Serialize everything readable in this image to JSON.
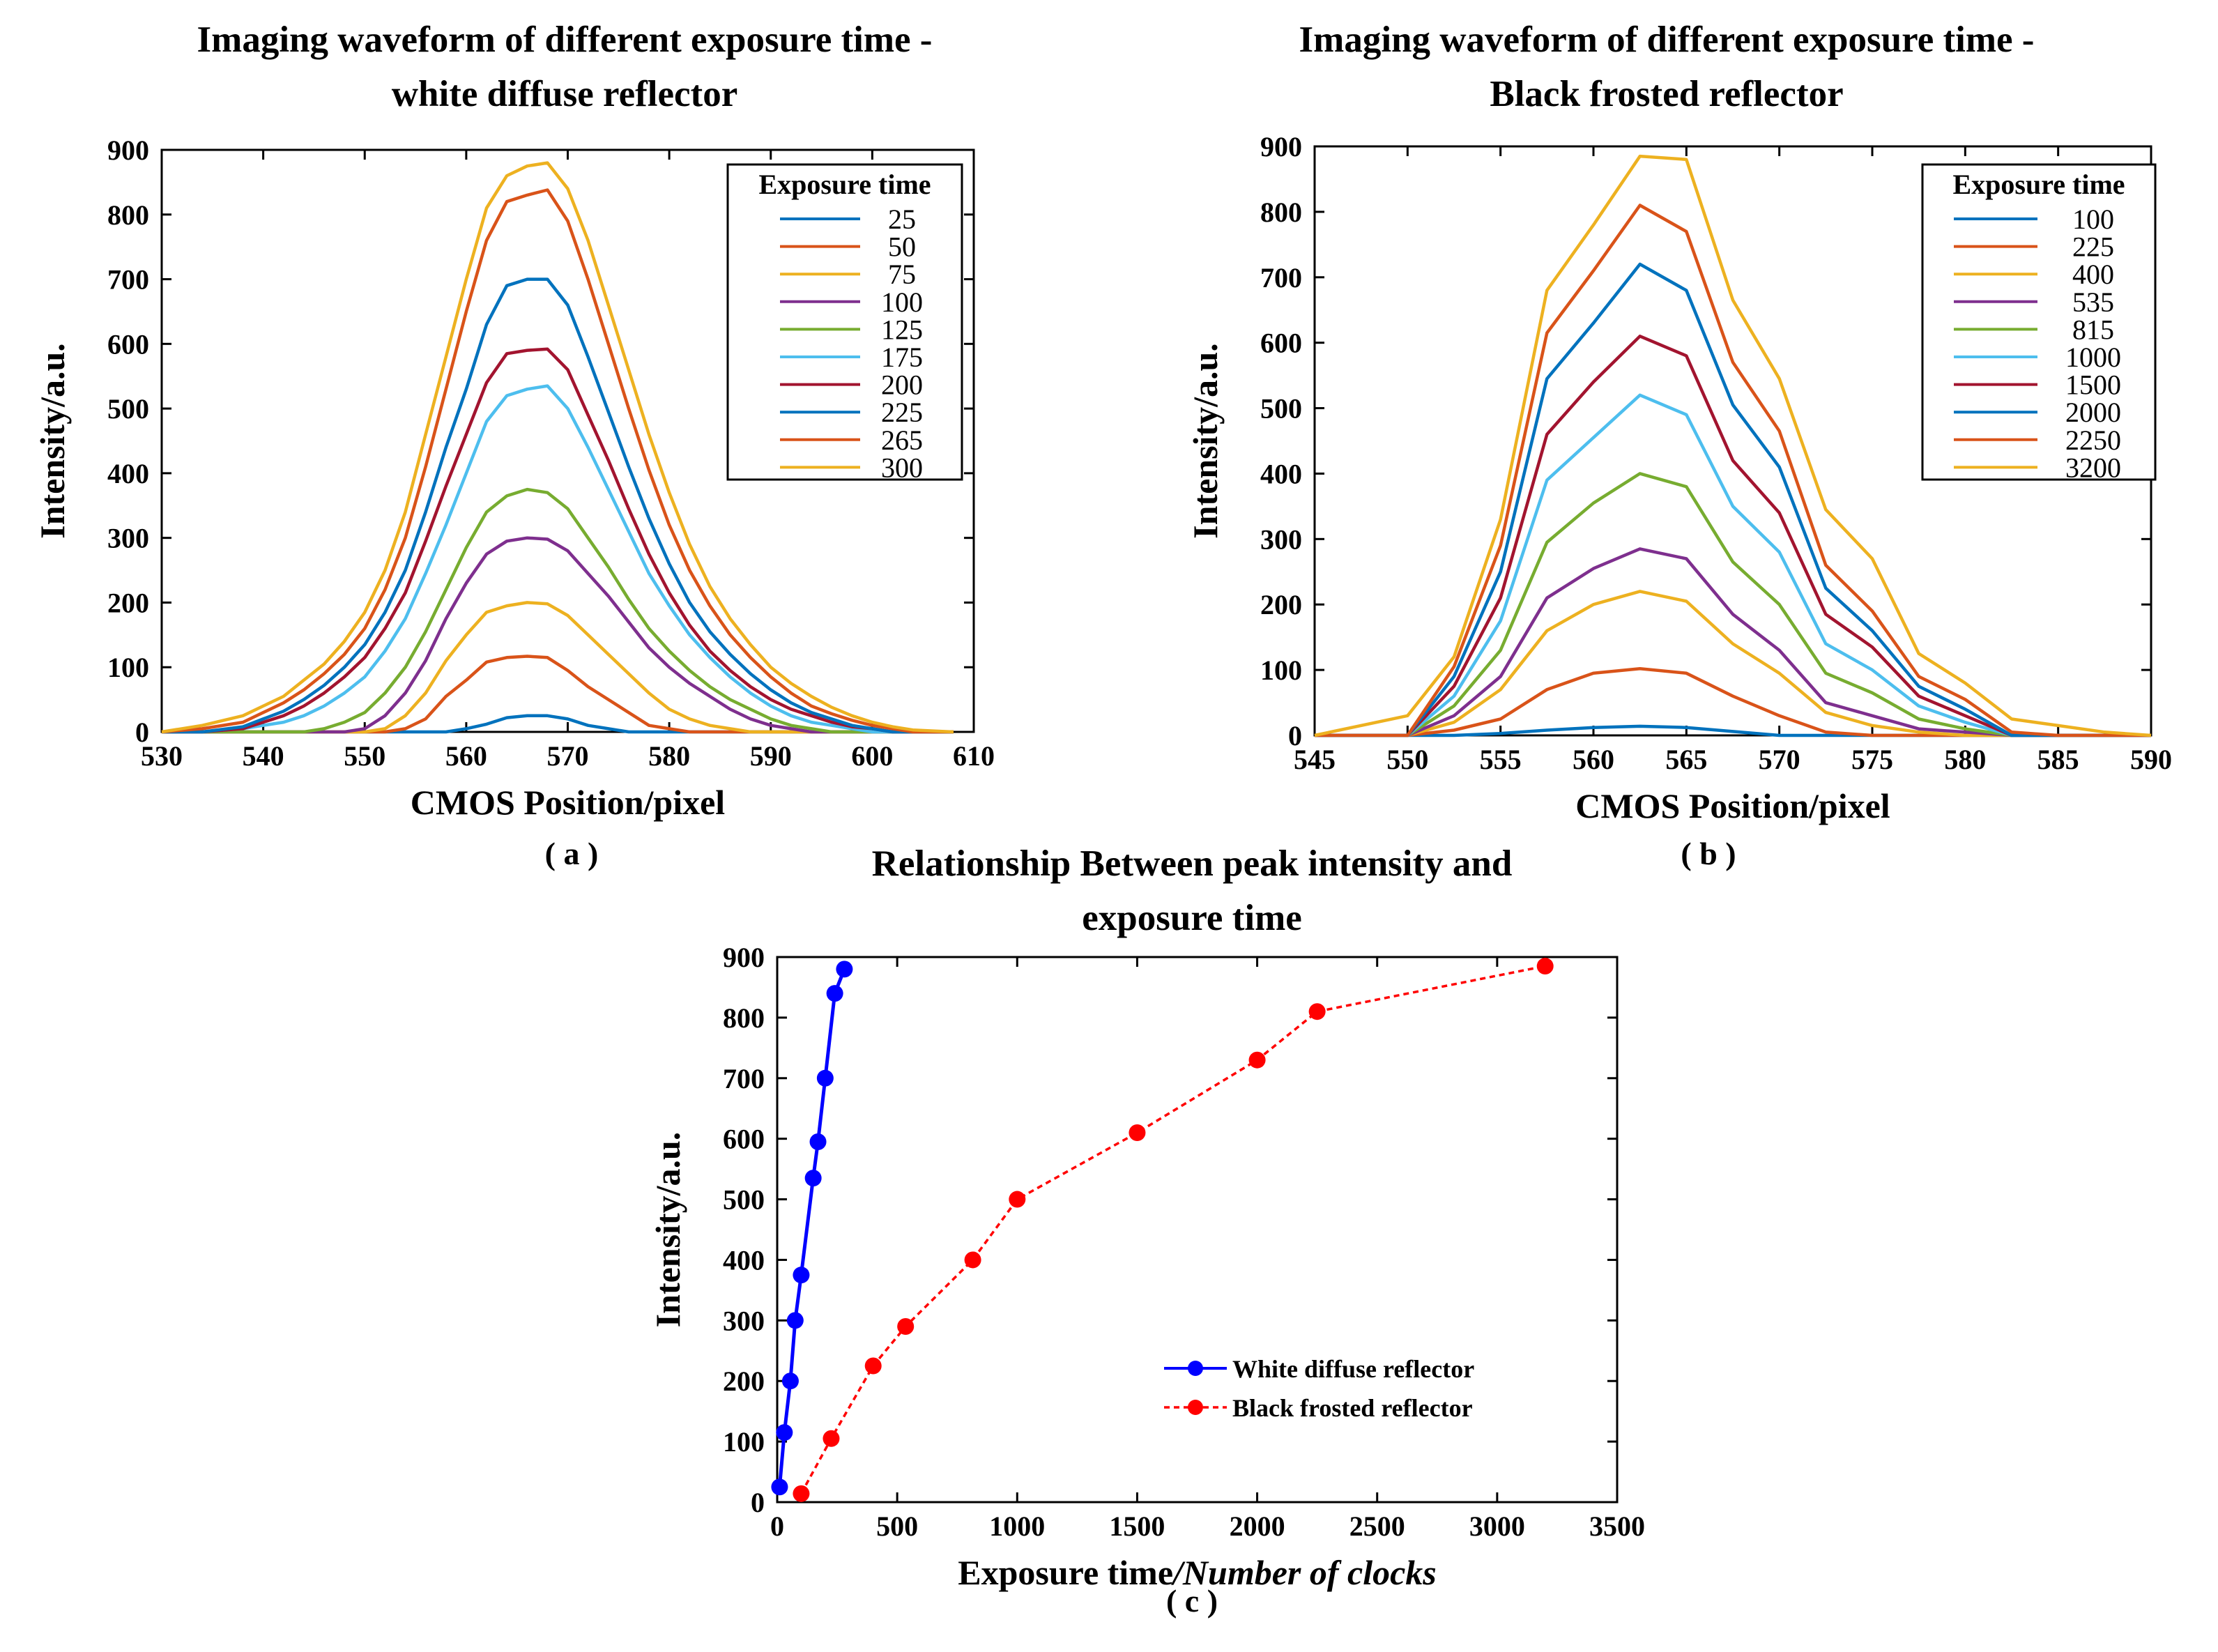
{
  "chart_data": [
    {
      "id": "a",
      "type": "line",
      "title_line1": "Imaging waveform of different exposure time -",
      "title_line2": "white diffuse reflector",
      "xlabel": "CMOS Position/pixel",
      "ylabel": "Intensity/a.u.",
      "caption": "( a )",
      "xlim": [
        530,
        610
      ],
      "ylim": [
        0,
        900
      ],
      "xticks": [
        530,
        540,
        550,
        560,
        570,
        580,
        590,
        600,
        610
      ],
      "yticks": [
        0,
        100,
        200,
        300,
        400,
        500,
        600,
        700,
        800,
        900
      ],
      "legend_title": "Exposure time",
      "x": [
        530,
        534,
        538,
        540,
        542,
        544,
        546,
        548,
        550,
        552,
        554,
        556,
        558,
        560,
        562,
        564,
        566,
        568,
        570,
        572,
        574,
        576,
        578,
        580,
        582,
        584,
        586,
        588,
        590,
        592,
        594,
        596,
        598,
        600,
        602,
        604,
        608
      ],
      "series": [
        {
          "name": "25",
          "color": "#0072BD",
          "values": [
            0,
            0,
            0,
            0,
            0,
            0,
            0,
            0,
            0,
            0,
            0,
            0,
            0,
            5,
            12,
            22,
            25,
            25,
            20,
            10,
            5,
            0,
            0,
            0,
            0,
            0,
            0,
            0,
            0,
            0,
            0,
            0,
            0,
            0,
            0,
            0,
            0
          ]
        },
        {
          "name": "50",
          "color": "#D95319",
          "values": [
            0,
            0,
            0,
            0,
            0,
            0,
            0,
            0,
            0,
            0,
            5,
            20,
            55,
            80,
            108,
            115,
            117,
            115,
            95,
            70,
            50,
            30,
            10,
            5,
            0,
            0,
            0,
            0,
            0,
            0,
            0,
            0,
            0,
            0,
            0,
            0,
            0
          ]
        },
        {
          "name": "75",
          "color": "#EDB120",
          "values": [
            0,
            0,
            0,
            0,
            0,
            0,
            0,
            0,
            0,
            5,
            25,
            60,
            110,
            150,
            185,
            195,
            200,
            198,
            180,
            150,
            120,
            90,
            60,
            35,
            20,
            10,
            5,
            0,
            0,
            0,
            0,
            0,
            0,
            0,
            0,
            0,
            0
          ]
        },
        {
          "name": "100",
          "color": "#7E2F8E",
          "values": [
            0,
            0,
            0,
            0,
            0,
            0,
            0,
            0,
            5,
            25,
            60,
            110,
            175,
            230,
            275,
            295,
            300,
            298,
            280,
            245,
            210,
            170,
            130,
            100,
            75,
            55,
            35,
            20,
            10,
            5,
            0,
            0,
            0,
            0,
            0,
            0,
            0
          ]
        },
        {
          "name": "125",
          "color": "#77AC30",
          "values": [
            0,
            0,
            0,
            0,
            0,
            0,
            5,
            15,
            30,
            60,
            100,
            155,
            220,
            285,
            340,
            365,
            375,
            370,
            345,
            300,
            255,
            205,
            160,
            125,
            95,
            70,
            50,
            35,
            20,
            10,
            5,
            0,
            0,
            0,
            0,
            0,
            0
          ]
        },
        {
          "name": "175",
          "color": "#4DBEEE",
          "values": [
            0,
            0,
            5,
            10,
            15,
            25,
            40,
            60,
            85,
            125,
            175,
            245,
            320,
            400,
            480,
            520,
            530,
            535,
            500,
            440,
            375,
            310,
            245,
            195,
            150,
            115,
            85,
            60,
            40,
            25,
            15,
            10,
            5,
            0,
            0,
            0,
            0
          ]
        },
        {
          "name": "200",
          "color": "#A2142F",
          "values": [
            0,
            0,
            5,
            15,
            25,
            40,
            60,
            85,
            115,
            160,
            215,
            295,
            380,
            460,
            540,
            585,
            590,
            592,
            560,
            490,
            420,
            345,
            275,
            215,
            165,
            125,
            95,
            70,
            50,
            35,
            25,
            15,
            8,
            5,
            0,
            0,
            0
          ]
        },
        {
          "name": "225",
          "color": "#0072BD",
          "values": [
            0,
            0,
            8,
            20,
            32,
            50,
            72,
            100,
            135,
            185,
            250,
            340,
            440,
            530,
            630,
            690,
            700,
            700,
            660,
            580,
            495,
            410,
            330,
            260,
            200,
            155,
            120,
            90,
            65,
            45,
            30,
            20,
            10,
            5,
            0,
            0,
            0
          ]
        },
        {
          "name": "265",
          "color": "#D95319",
          "values": [
            0,
            5,
            15,
            30,
            45,
            65,
            90,
            120,
            160,
            220,
            300,
            410,
            530,
            650,
            760,
            820,
            830,
            838,
            790,
            700,
            600,
            500,
            405,
            320,
            250,
            195,
            150,
            115,
            85,
            60,
            40,
            28,
            18,
            10,
            5,
            0,
            0
          ]
        },
        {
          "name": "300",
          "color": "#EDB120",
          "values": [
            0,
            10,
            25,
            40,
            55,
            80,
            105,
            140,
            185,
            250,
            340,
            460,
            580,
            700,
            810,
            860,
            875,
            880,
            840,
            760,
            660,
            560,
            460,
            370,
            290,
            225,
            175,
            135,
            100,
            75,
            55,
            38,
            25,
            15,
            8,
            3,
            0
          ]
        }
      ]
    },
    {
      "id": "b",
      "type": "line",
      "title_line1": "Imaging waveform of different exposure time -",
      "title_line2": "Black frosted reflector",
      "xlabel": "CMOS Position/pixel",
      "ylabel": "Intensity/a.u.",
      "caption": "( b )",
      "xlim": [
        545,
        590
      ],
      "ylim": [
        0,
        900
      ],
      "xticks": [
        545,
        550,
        555,
        560,
        565,
        570,
        575,
        580,
        585,
        590
      ],
      "yticks": [
        0,
        100,
        200,
        300,
        400,
        500,
        600,
        700,
        800,
        900
      ],
      "legend_title": "Exposure time",
      "x": [
        545,
        550,
        552.5,
        555,
        557.5,
        560,
        562.5,
        565,
        567.5,
        570,
        572.5,
        575,
        577.5,
        580,
        582.5,
        585,
        587.5,
        590
      ],
      "series": [
        {
          "name": "100",
          "color": "#0072BD",
          "values": [
            0,
            0,
            0,
            3,
            8,
            12,
            14,
            12,
            6,
            0,
            0,
            0,
            0,
            0,
            0,
            0,
            0,
            0
          ]
        },
        {
          "name": "225",
          "color": "#D95319",
          "values": [
            0,
            0,
            8,
            25,
            70,
            95,
            102,
            95,
            60,
            30,
            5,
            0,
            0,
            0,
            0,
            0,
            0,
            0
          ]
        },
        {
          "name": "400",
          "color": "#EDB120",
          "values": [
            0,
            0,
            20,
            70,
            160,
            200,
            220,
            205,
            140,
            95,
            35,
            15,
            5,
            0,
            0,
            0,
            0,
            0
          ]
        },
        {
          "name": "535",
          "color": "#7E2F8E",
          "values": [
            0,
            0,
            30,
            90,
            210,
            255,
            285,
            270,
            185,
            130,
            50,
            30,
            10,
            5,
            0,
            0,
            0,
            0
          ]
        },
        {
          "name": "815",
          "color": "#77AC30",
          "values": [
            0,
            0,
            45,
            130,
            295,
            355,
            400,
            380,
            265,
            200,
            95,
            65,
            25,
            10,
            0,
            0,
            0,
            0
          ]
        },
        {
          "name": "1000",
          "color": "#4DBEEE",
          "values": [
            0,
            0,
            60,
            175,
            390,
            455,
            520,
            490,
            350,
            280,
            140,
            100,
            45,
            20,
            0,
            0,
            0,
            0
          ]
        },
        {
          "name": "1500",
          "color": "#A2142F",
          "values": [
            0,
            0,
            75,
            210,
            460,
            540,
            610,
            580,
            420,
            340,
            185,
            135,
            60,
            30,
            0,
            0,
            0,
            0
          ]
        },
        {
          "name": "2000",
          "color": "#0072BD",
          "values": [
            0,
            0,
            90,
            250,
            545,
            630,
            720,
            680,
            505,
            410,
            225,
            160,
            75,
            40,
            0,
            0,
            0,
            0
          ]
        },
        {
          "name": "2250",
          "color": "#D95319",
          "values": [
            0,
            0,
            105,
            290,
            615,
            710,
            810,
            770,
            570,
            465,
            260,
            190,
            90,
            55,
            5,
            0,
            0,
            0
          ]
        },
        {
          "name": "3200",
          "color": "#EDB120",
          "values": [
            0,
            30,
            120,
            330,
            680,
            780,
            885,
            880,
            665,
            545,
            345,
            270,
            125,
            80,
            25,
            15,
            5,
            0
          ]
        }
      ]
    },
    {
      "id": "c",
      "type": "scatter",
      "title_line1": "Relationship Between peak intensity and",
      "title_line2": "exposure time",
      "xlabel_plain": "Exposure time",
      "xlabel_italic": "/Number of clocks",
      "ylabel": "Intensity/a.u.",
      "caption": "( c )",
      "xlim": [
        0,
        3500
      ],
      "ylim": [
        0,
        900
      ],
      "xticks": [
        0,
        500,
        1000,
        1500,
        2000,
        2500,
        3000,
        3500
      ],
      "yticks": [
        0,
        100,
        200,
        300,
        400,
        500,
        600,
        700,
        800,
        900
      ],
      "series": [
        {
          "name": "White diffuse reflector",
          "color": "#0000FF",
          "dash": "solid",
          "x": [
            10,
            30,
            55,
            75,
            100,
            150,
            170,
            200,
            240,
            280
          ],
          "y": [
            25,
            115,
            200,
            300,
            375,
            535,
            595,
            700,
            840,
            880
          ]
        },
        {
          "name": "Black frosted reflector",
          "color": "#FF0000",
          "dash": "dotted",
          "x": [
            100,
            225,
            400,
            535,
            815,
            1000,
            1500,
            2000,
            2250,
            3200
          ],
          "y": [
            14,
            105,
            225,
            290,
            400,
            500,
            610,
            730,
            810,
            885
          ]
        }
      ]
    }
  ]
}
